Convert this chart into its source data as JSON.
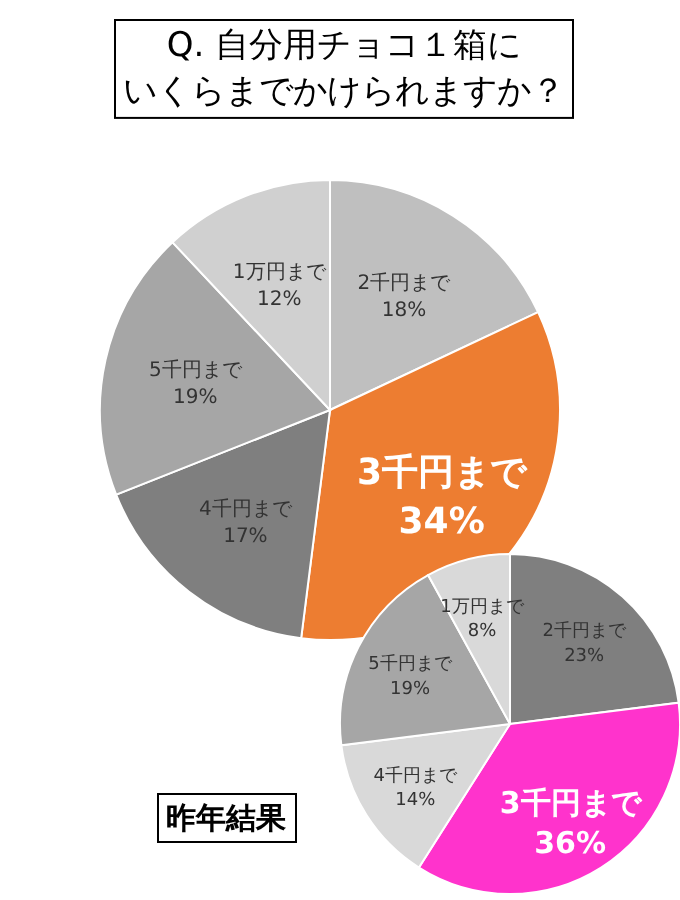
{
  "chart_data": [
    {
      "type": "pie",
      "title": "Q. 自分用チョコ１箱にいくらまでかけられますか？",
      "categories": [
        "2千円まで",
        "3千円まで",
        "4千円まで",
        "5千円まで",
        "1万円まで"
      ],
      "values": [
        18,
        34,
        17,
        19,
        12
      ],
      "value_labels": [
        "18%",
        "34%",
        "17%",
        "19%",
        "12%"
      ],
      "colors": [
        "#bfbfbf",
        "#ed7d31",
        "#7f7f7f",
        "#a6a6a6",
        "#d0d0d0"
      ]
    },
    {
      "type": "pie",
      "title": "昨年結果",
      "categories": [
        "2千円まで",
        "3千円まで",
        "4千円まで",
        "5千円まで",
        "1万円まで"
      ],
      "values": [
        23,
        36,
        14,
        19,
        8
      ],
      "value_labels": [
        "23%",
        "36%",
        "14%",
        "19%",
        "8%"
      ],
      "colors": [
        "#7f7f7f",
        "#ff33cc",
        "#d9d9d9",
        "#a6a6a6",
        "#d9d9d9"
      ]
    }
  ]
}
